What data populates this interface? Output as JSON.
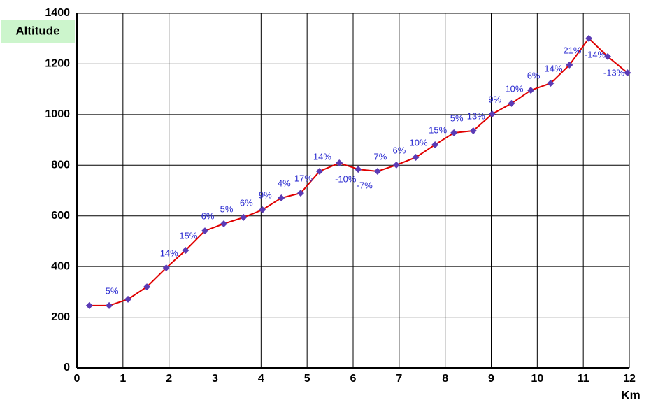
{
  "chart_data": {
    "type": "line",
    "y_label": "Altitude",
    "x_label": "Km",
    "x": [
      0.27,
      0.7,
      1.11,
      1.52,
      1.94,
      2.36,
      2.78,
      3.19,
      3.62,
      4.03,
      4.44,
      4.86,
      5.27,
      5.7,
      6.11,
      6.53,
      6.94,
      7.36,
      7.78,
      8.19,
      8.61,
      9.02,
      9.44,
      9.86,
      10.29,
      10.7,
      11.12,
      11.53,
      11.96
    ],
    "series": [
      {
        "color": "#e00000",
        "marker_color": "#5b3bb5",
        "values": [
          246,
          246,
          271,
          320,
          395,
          464,
          541,
          569,
          594,
          624,
          671,
          690,
          776,
          809,
          784,
          776,
          801,
          831,
          881,
          928,
          936,
          1002,
          1044,
          1096,
          1124,
          1196,
          1301,
          1229,
          1165
        ],
        "value_labels": [
          null,
          "5%",
          null,
          null,
          "14%",
          "15%",
          "6%",
          "5%",
          "6%",
          "9%",
          "4%",
          "17%",
          "14%",
          "-10%",
          "-7%",
          "7%",
          "6%",
          "10%",
          "15%",
          "5%",
          "13%",
          "9%",
          "10%",
          "6%",
          "14%",
          "21%",
          "-14%",
          "-13%",
          null
        ]
      }
    ],
    "xlim": [
      0,
      12
    ],
    "xticks": [
      0,
      1,
      2,
      3,
      4,
      5,
      6,
      7,
      8,
      9,
      10,
      11,
      12
    ],
    "ylim": [
      0,
      1400
    ],
    "yticks": [
      0,
      200,
      400,
      600,
      800,
      1000,
      1200,
      1400
    ],
    "grid": true
  }
}
